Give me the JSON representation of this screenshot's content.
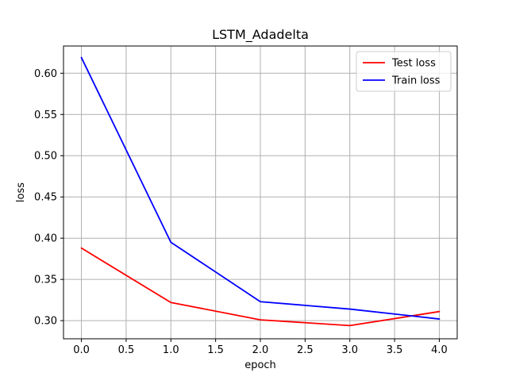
{
  "chart_data": {
    "type": "line",
    "title": "LSTM_Adadelta",
    "xlabel": "epoch",
    "ylabel": "loss",
    "x": [
      0,
      1,
      2,
      3,
      4
    ],
    "xlim": [
      -0.2,
      4.2
    ],
    "ylim": [
      0.278,
      0.633
    ],
    "xticks": [
      0.0,
      0.5,
      1.0,
      1.5,
      2.0,
      2.5,
      3.0,
      3.5,
      4.0
    ],
    "xtick_labels": [
      "0.0",
      "0.5",
      "1.0",
      "1.5",
      "2.0",
      "2.5",
      "3.0",
      "3.5",
      "4.0"
    ],
    "yticks": [
      0.3,
      0.35,
      0.4,
      0.45,
      0.5,
      0.55,
      0.6
    ],
    "ytick_labels": [
      "0.30",
      "0.35",
      "0.40",
      "0.45",
      "0.50",
      "0.55",
      "0.60"
    ],
    "grid": true,
    "legend_position": "top-right",
    "series": [
      {
        "name": "Test loss",
        "color": "#ff0000",
        "values": [
          0.388,
          0.322,
          0.301,
          0.294,
          0.311
        ]
      },
      {
        "name": "Train loss",
        "color": "#0000ff",
        "values": [
          0.619,
          0.395,
          0.323,
          0.314,
          0.302
        ]
      }
    ]
  }
}
